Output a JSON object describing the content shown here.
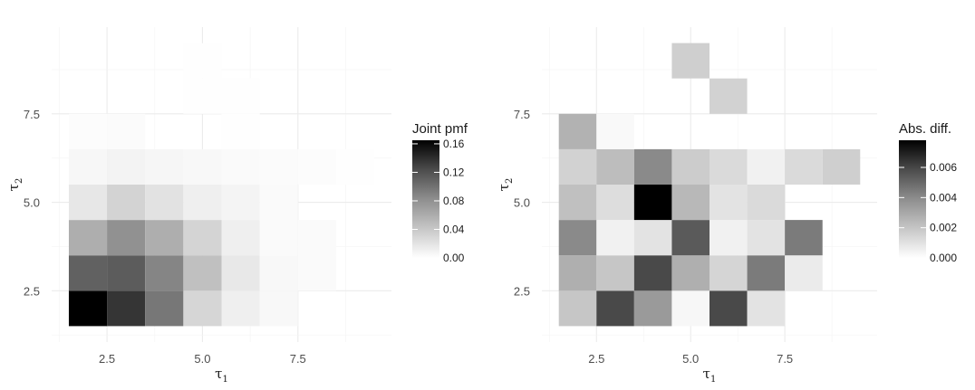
{
  "chart_data": [
    {
      "type": "heatmap",
      "xlabel": "τ",
      "xlabel_sub": "1",
      "ylabel": "τ",
      "ylabel_sub": "2",
      "x_ticks": [
        "2.5",
        "5.0",
        "7.5"
      ],
      "y_ticks": [
        "2.5",
        "5.0",
        "7.5"
      ],
      "xlim": [
        1.05,
        9.95
      ],
      "ylim": [
        1.05,
        9.95
      ],
      "grid": "on",
      "colorscale": [
        "#ffffff",
        "#000000"
      ],
      "legend": {
        "title": "Joint pmf",
        "position": "right",
        "min": 0,
        "max": 0.165,
        "ticks": [
          {
            "value": 0.0,
            "label": "0.00"
          },
          {
            "value": 0.04,
            "label": "0.04"
          },
          {
            "value": 0.08,
            "label": "0.08"
          },
          {
            "value": 0.12,
            "label": "0.12"
          },
          {
            "value": 0.16,
            "label": "0.16"
          }
        ]
      },
      "cells": [
        {
          "x": 2,
          "y": 2,
          "value": 0.165
        },
        {
          "x": 3,
          "y": 2,
          "value": 0.139
        },
        {
          "x": 4,
          "y": 2,
          "value": 0.098
        },
        {
          "x": 5,
          "y": 2,
          "value": 0.031
        },
        {
          "x": 6,
          "y": 2,
          "value": 0.012
        },
        {
          "x": 7,
          "y": 2,
          "value": 0.005
        },
        {
          "x": 2,
          "y": 3,
          "value": 0.112
        },
        {
          "x": 3,
          "y": 3,
          "value": 0.115
        },
        {
          "x": 4,
          "y": 3,
          "value": 0.088
        },
        {
          "x": 5,
          "y": 3,
          "value": 0.047
        },
        {
          "x": 6,
          "y": 3,
          "value": 0.017
        },
        {
          "x": 7,
          "y": 3,
          "value": 0.005
        },
        {
          "x": 8,
          "y": 3,
          "value": 0.004
        },
        {
          "x": 2,
          "y": 4,
          "value": 0.06
        },
        {
          "x": 3,
          "y": 4,
          "value": 0.08
        },
        {
          "x": 4,
          "y": 4,
          "value": 0.06
        },
        {
          "x": 5,
          "y": 4,
          "value": 0.032
        },
        {
          "x": 6,
          "y": 4,
          "value": 0.012
        },
        {
          "x": 7,
          "y": 4,
          "value": 0.004
        },
        {
          "x": 8,
          "y": 4,
          "value": 0.004
        },
        {
          "x": 2,
          "y": 5,
          "value": 0.018
        },
        {
          "x": 3,
          "y": 5,
          "value": 0.033
        },
        {
          "x": 4,
          "y": 5,
          "value": 0.022
        },
        {
          "x": 5,
          "y": 5,
          "value": 0.012
        },
        {
          "x": 6,
          "y": 5,
          "value": 0.008
        },
        {
          "x": 7,
          "y": 5,
          "value": 0.004
        },
        {
          "x": 2,
          "y": 6,
          "value": 0.006
        },
        {
          "x": 3,
          "y": 6,
          "value": 0.009
        },
        {
          "x": 4,
          "y": 6,
          "value": 0.007
        },
        {
          "x": 5,
          "y": 6,
          "value": 0.005
        },
        {
          "x": 6,
          "y": 6,
          "value": 0.004
        },
        {
          "x": 7,
          "y": 6,
          "value": 0.003
        },
        {
          "x": 8,
          "y": 6,
          "value": 0.002
        },
        {
          "x": 9,
          "y": 6,
          "value": 0.001
        },
        {
          "x": 2,
          "y": 7,
          "value": 0.002
        },
        {
          "x": 3,
          "y": 7,
          "value": 0.003
        },
        {
          "x": 5,
          "y": 8,
          "value": 0.0005
        },
        {
          "x": 6,
          "y": 7,
          "value": 0.0005
        },
        {
          "x": 6,
          "y": 8,
          "value": 0.0005
        },
        {
          "x": 5,
          "y": 9,
          "value": 0.0005
        }
      ]
    },
    {
      "type": "heatmap",
      "xlabel": "τ",
      "xlabel_sub": "1",
      "ylabel": "τ",
      "ylabel_sub": "2",
      "x_ticks": [
        "2.5",
        "5.0",
        "7.5"
      ],
      "y_ticks": [
        "2.5",
        "5.0",
        "7.5"
      ],
      "xlim": [
        1.05,
        9.95
      ],
      "ylim": [
        1.05,
        9.95
      ],
      "grid": "on",
      "colorscale": [
        "#ffffff",
        "#000000"
      ],
      "legend": {
        "title": "Abs. diff.",
        "position": "right",
        "min": 0,
        "max": 0.0078,
        "ticks": [
          {
            "value": 0.0,
            "label": "0.000"
          },
          {
            "value": 0.002,
            "label": "0.002"
          },
          {
            "value": 0.004,
            "label": "0.004"
          },
          {
            "value": 0.006,
            "label": "0.006"
          }
        ]
      },
      "cells": [
        {
          "x": 2,
          "y": 2,
          "value": 0.002
        },
        {
          "x": 3,
          "y": 2,
          "value": 0.006
        },
        {
          "x": 4,
          "y": 2,
          "value": 0.0035
        },
        {
          "x": 5,
          "y": 2,
          "value": 0.0003
        },
        {
          "x": 6,
          "y": 2,
          "value": 0.006
        },
        {
          "x": 7,
          "y": 2,
          "value": 0.001
        },
        {
          "x": 2,
          "y": 3,
          "value": 0.0028
        },
        {
          "x": 3,
          "y": 3,
          "value": 0.002
        },
        {
          "x": 4,
          "y": 3,
          "value": 0.006
        },
        {
          "x": 5,
          "y": 3,
          "value": 0.0028
        },
        {
          "x": 6,
          "y": 3,
          "value": 0.0015
        },
        {
          "x": 7,
          "y": 3,
          "value": 0.0045
        },
        {
          "x": 8,
          "y": 3,
          "value": 0.0007
        },
        {
          "x": 2,
          "y": 4,
          "value": 0.004
        },
        {
          "x": 3,
          "y": 4,
          "value": 0.0005
        },
        {
          "x": 4,
          "y": 4,
          "value": 0.001
        },
        {
          "x": 5,
          "y": 4,
          "value": 0.0055
        },
        {
          "x": 6,
          "y": 4,
          "value": 0.0005
        },
        {
          "x": 7,
          "y": 4,
          "value": 0.001
        },
        {
          "x": 8,
          "y": 4,
          "value": 0.0045
        },
        {
          "x": 2,
          "y": 5,
          "value": 0.0022
        },
        {
          "x": 3,
          "y": 5,
          "value": 0.0012
        },
        {
          "x": 4,
          "y": 5,
          "value": 0.0078
        },
        {
          "x": 5,
          "y": 5,
          "value": 0.0025
        },
        {
          "x": 6,
          "y": 5,
          "value": 0.001
        },
        {
          "x": 7,
          "y": 5,
          "value": 0.0013
        },
        {
          "x": 2,
          "y": 6,
          "value": 0.0016
        },
        {
          "x": 3,
          "y": 6,
          "value": 0.0023
        },
        {
          "x": 4,
          "y": 6,
          "value": 0.004
        },
        {
          "x": 5,
          "y": 6,
          "value": 0.0018
        },
        {
          "x": 6,
          "y": 6,
          "value": 0.0013
        },
        {
          "x": 7,
          "y": 6,
          "value": 0.0005
        },
        {
          "x": 8,
          "y": 6,
          "value": 0.0013
        },
        {
          "x": 9,
          "y": 6,
          "value": 0.0017
        },
        {
          "x": 2,
          "y": 7,
          "value": 0.0027
        },
        {
          "x": 3,
          "y": 7,
          "value": 0.0002
        },
        {
          "x": 6,
          "y": 8,
          "value": 0.0016
        },
        {
          "x": 5,
          "y": 9,
          "value": 0.0017
        }
      ]
    }
  ]
}
